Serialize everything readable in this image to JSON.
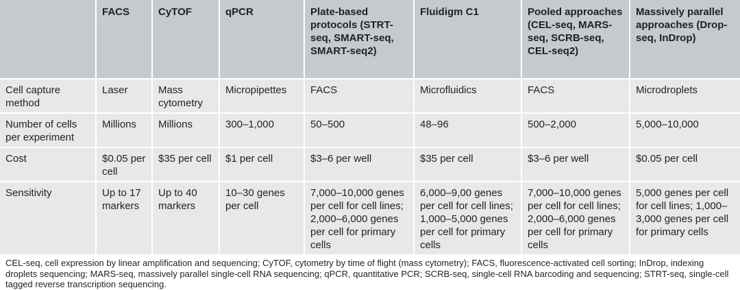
{
  "table": {
    "header": [
      "FACS",
      "CyTOF",
      "qPCR",
      "Plate-based protocols (STRT-seq, SMART-seq, SMART-seq2)",
      "Fluidigm C1",
      "Pooled approaches (CEL-seq, MARS-seq, SCRB-seq, CEL-seq2)",
      "Massively parallel approaches (Drop-seq, InDrop)"
    ],
    "rows": [
      {
        "label": "Cell capture method",
        "cells": [
          "Laser",
          "Mass cytometry",
          "Micropipettes",
          "FACS",
          "Microfluidics",
          "FACS",
          "Microdroplets"
        ]
      },
      {
        "label": "Number of cells per experiment",
        "cells": [
          "Millions",
          "Millions",
          "300–1,000",
          "50–500",
          "48–96",
          "500–2,000",
          "5,000–10,000"
        ]
      },
      {
        "label": "Cost",
        "cells": [
          "$0.05 per cell",
          "$35 per cell",
          "$1 per cell",
          "$3–6 per well",
          "$35 per cell",
          "$3–6 per well",
          "$0.05 per cell"
        ]
      },
      {
        "label": "Sensitivity",
        "cells": [
          "Up to 17 markers",
          "Up to 40 markers",
          "10–30 genes per cell",
          "7,000–10,000 genes per cell for cell lines; 2,000–6,000 genes per cell for primary cells",
          "6,000–9,00 genes per cell for cell lines; 1,000–5,000 genes per cell for primary cells",
          "7,000–10,000 genes per cell for cell lines; 2,000–6,000 genes per cell for primary cells",
          "5,000 genes per cell for cell lines; 1,000–3,000 genes per cell for primary cells"
        ]
      }
    ]
  },
  "footnote": "CEL-seq, cell expression by linear amplification and sequencing; CyTOF, cytometry by time of flight (mass cytometry); FACS, fluorescence-activated cell sorting; InDrop, indexing droplets sequencing; MARS-seq, massively parallel single-cell RNA sequencing; qPCR, quantitative PCR; SCRB-seq, single-cell RNA barcoding and sequencing; STRT-seq, single-cell tagged reverse transcription sequencing."
}
